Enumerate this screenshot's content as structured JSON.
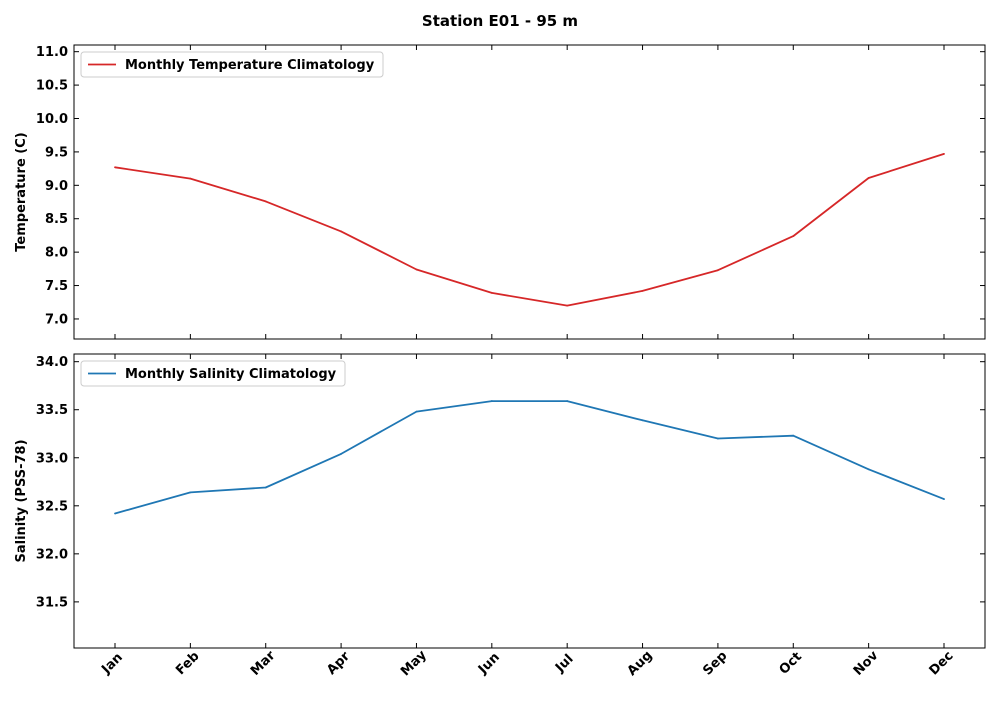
{
  "figure": {
    "title": "Station E01 - 95 m"
  },
  "chart_data": [
    {
      "type": "line",
      "categories": [
        "Jan",
        "Feb",
        "Mar",
        "Apr",
        "May",
        "Jun",
        "Jul",
        "Aug",
        "Sep",
        "Oct",
        "Nov",
        "Dec"
      ],
      "series": [
        {
          "name": "Monthly Temperature Climatology",
          "color": "#d62728",
          "values": [
            9.27,
            9.1,
            8.76,
            8.31,
            7.74,
            7.39,
            7.2,
            7.42,
            7.73,
            8.24,
            9.11,
            9.47
          ]
        }
      ],
      "ylabel": "Temperature (C)",
      "ylim": [
        6.7,
        11.1
      ],
      "yticks": [
        7.0,
        7.5,
        8.0,
        8.5,
        9.0,
        9.5,
        10.0,
        10.5,
        11.0
      ],
      "yticklabels": [
        "7.0",
        "7.5",
        "8.0",
        "8.5",
        "9.0",
        "9.5",
        "10.0",
        "10.5",
        "11.0"
      ],
      "show_xticklabels": false,
      "legend": "top-left",
      "grid": false
    },
    {
      "type": "line",
      "categories": [
        "Jan",
        "Feb",
        "Mar",
        "Apr",
        "May",
        "Jun",
        "Jul",
        "Aug",
        "Sep",
        "Oct",
        "Nov",
        "Dec"
      ],
      "series": [
        {
          "name": "Monthly Salinity Climatology",
          "color": "#1f77b4",
          "values": [
            32.42,
            32.64,
            32.69,
            33.04,
            33.48,
            33.59,
            33.59,
            33.39,
            33.2,
            33.23,
            32.88,
            32.57
          ]
        }
      ],
      "ylabel": "Salinity (PSS-78)",
      "ylim": [
        31.02,
        34.08
      ],
      "yticks": [
        31.5,
        32.0,
        32.5,
        33.0,
        33.5,
        34.0
      ],
      "yticklabels": [
        "31.5",
        "32.0",
        "32.5",
        "33.0",
        "33.5",
        "34.0"
      ],
      "show_xticklabels": true,
      "legend": "top-left",
      "grid": false
    }
  ]
}
